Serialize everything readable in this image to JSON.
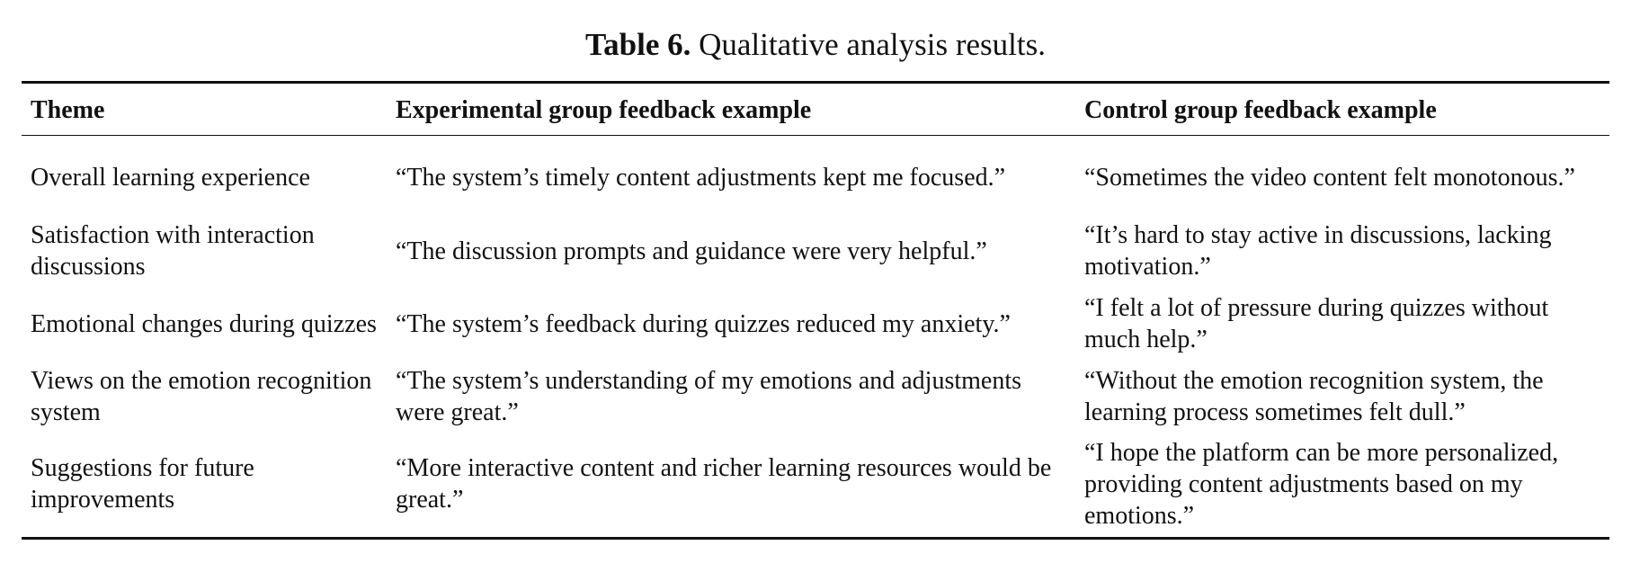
{
  "caption": {
    "label": "Table 6.",
    "text": " Qualitative analysis results."
  },
  "table": {
    "headers": [
      "Theme",
      "Experimental group feedback example",
      "Control group feedback example"
    ],
    "rows": [
      {
        "theme": "Overall learning experience",
        "experimental": "“The system’s timely content adjustments kept me focused.”",
        "control": "“Sometimes the video content felt monotonous.”"
      },
      {
        "theme": "Satisfaction with interaction discussions",
        "experimental": "“The discussion prompts and guidance were very helpful.”",
        "control": "“It’s hard to stay active in discussions, lacking motivation.”"
      },
      {
        "theme": "Emotional changes during quizzes",
        "experimental": "“The system’s feedback during quizzes reduced my anxiety.”",
        "control": "“I felt a lot of pressure during quizzes without much help.”"
      },
      {
        "theme": "Views on the emotion recognition system",
        "experimental": "“The system’s understanding of my emotions and adjustments were great.”",
        "control": "“Without the emotion recognition system, the learning process sometimes felt dull.”"
      },
      {
        "theme": "Suggestions for future improvements",
        "experimental": "“More interactive content and richer learning resources would be great.”",
        "control": "“I hope the platform can be more personalized, providing content adjustments based on my emotions.”"
      }
    ]
  }
}
